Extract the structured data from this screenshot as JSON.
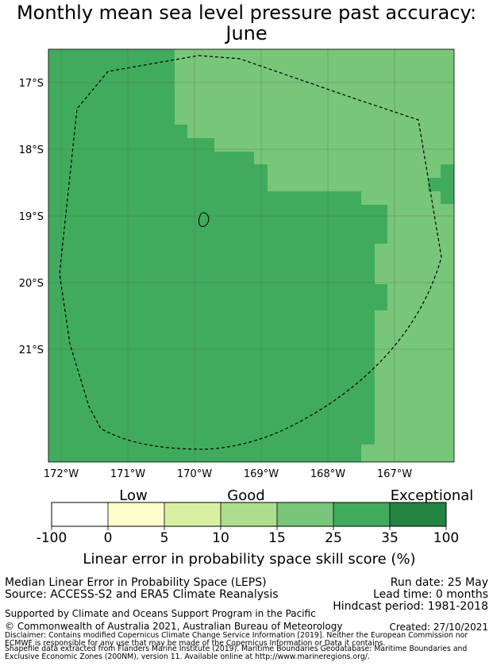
{
  "title": {
    "line1": "Monthly mean sea level pressure past accuracy:",
    "line2": "June"
  },
  "map": {
    "lon_labels": [
      "172°W",
      "171°W",
      "170°W",
      "169°W",
      "168°W",
      "167°W"
    ],
    "lat_labels": [
      "17°S",
      "18°S",
      "19°S",
      "20°S",
      "21°S"
    ],
    "region": {
      "lon_min": -172.2,
      "lon_max": -166.1,
      "lat_min": -22.7,
      "lat_max": -16.5
    },
    "colors": {
      "dark": "#41ab5d",
      "light": "#78c679",
      "grid": "#5a5a5a"
    }
  },
  "colorbar": {
    "ticks": [
      "-100",
      "0",
      "5",
      "10",
      "15",
      "25",
      "35",
      "100"
    ],
    "categories": [
      "Low",
      "Good",
      "Exceptional"
    ],
    "colors": [
      "#ffffff",
      "#ffffcc",
      "#d9f0a3",
      "#addd8e",
      "#78c679",
      "#41ab5d",
      "#238443"
    ],
    "title": "Linear error in probability space skill score (%)"
  },
  "info": {
    "method": "Median Linear Error in Probability Space (LEPS)",
    "source": "Source: ACCESS-S2 and ERA5 Climate Reanalysis",
    "run_date": "Run date: 25 May",
    "lead_time": "Lead time: 0 months",
    "hindcast": "Hindcast period: 1981-2018",
    "support": "Supported by Climate and Oceans Support Program in the Pacific",
    "copyright": "© Commonwealth of Australia 2021, Australian Bureau of Meteorology",
    "created": "Created: 27/10/2021",
    "disclaimer1": "Disclaimer: Contains modified Copernicus Climate Change Service Information [2019]. Neither the European Commission nor",
    "disclaimer2": "ECMWF is responsible for any use that may be made of the Copernicus Information or Data it contains.",
    "disclaimer3": "Shapefile data extracted from Flanders Marine Institute (2019). Maritime Boundaries Geodatabase: Maritime Boundaries and",
    "disclaimer4": "Exclusive Economic Zones (200NM), version 11. Available online at http://www.marineregions.org/."
  }
}
